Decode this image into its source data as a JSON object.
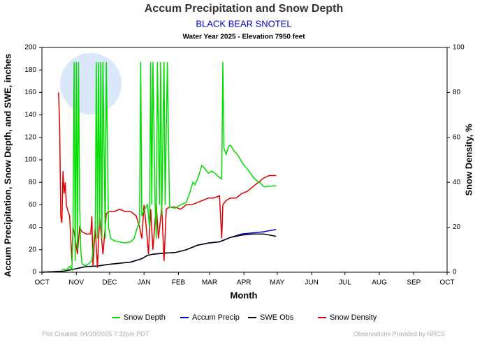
{
  "chart_data": {
    "type": "line",
    "title": "Accum Precipitation and Snow Depth",
    "subtitle": "BLACK BEAR SNOTEL",
    "info": "Water Year 2025 -  Elevation 7950 feet",
    "ylabel": "Accum Precipitation, Snow Depth, and SWE, inches",
    "y2label": "Snow Density, %",
    "xlabel": "Month",
    "footer_left": "Plot Created: 04/30/2025 7:32pm PDT",
    "footer_right": "Observations Provided by NRCS",
    "xlim": [
      0,
      365
    ],
    "xticks": [
      {
        "value": 0,
        "label": "OCT"
      },
      {
        "value": 31,
        "label": "NOV"
      },
      {
        "value": 61,
        "label": "DEC"
      },
      {
        "value": 92,
        "label": "JAN"
      },
      {
        "value": 123,
        "label": "FEB"
      },
      {
        "value": 151,
        "label": "MAR"
      },
      {
        "value": 182,
        "label": "APR"
      },
      {
        "value": 212,
        "label": "MAY"
      },
      {
        "value": 243,
        "label": "JUN"
      },
      {
        "value": 273,
        "label": "JUL"
      },
      {
        "value": 304,
        "label": "AUG"
      },
      {
        "value": 335,
        "label": "SEP"
      },
      {
        "value": 365,
        "label": "OCT"
      }
    ],
    "ylim": [
      0,
      200
    ],
    "yticks": [
      0,
      20,
      40,
      60,
      80,
      100,
      120,
      140,
      160,
      180,
      200
    ],
    "y2lim": [
      0,
      100
    ],
    "y2ticks": [
      0,
      20,
      40,
      60,
      80,
      100
    ],
    "legend": "bottom",
    "series": [
      {
        "name": "Snow Depth",
        "color": "#00dd00",
        "x": [
          18,
          22,
          25,
          27,
          28,
          29,
          30,
          31,
          32,
          33,
          34,
          35,
          36,
          38,
          40,
          45,
          48,
          49,
          50,
          51,
          52,
          53,
          54,
          55,
          57,
          58,
          60,
          62,
          65,
          70,
          75,
          80,
          83,
          86,
          88,
          89,
          90,
          92,
          95,
          97,
          98,
          99,
          100,
          102,
          103,
          104,
          106,
          107,
          108,
          110,
          111,
          113,
          115,
          120,
          125,
          130,
          133,
          136,
          138,
          141,
          144,
          147,
          150,
          153,
          156,
          159,
          162,
          163,
          164,
          166,
          168,
          170,
          173,
          176,
          179,
          182,
          185,
          188,
          190,
          193,
          196,
          198,
          200,
          211
        ],
        "values": [
          3,
          2,
          5,
          2,
          40,
          187,
          10,
          187,
          20,
          187,
          60,
          20,
          8,
          6,
          6,
          10,
          40,
          187,
          30,
          187,
          40,
          187,
          30,
          187,
          30,
          187,
          40,
          30,
          28,
          27,
          26,
          27,
          30,
          40,
          45,
          187,
          50,
          55,
          60,
          40,
          187,
          60,
          187,
          60,
          30,
          187,
          60,
          187,
          50,
          187,
          60,
          187,
          58,
          57,
          60,
          62,
          70,
          80,
          78,
          85,
          95,
          92,
          88,
          90,
          88,
          85,
          83,
          187,
          110,
          105,
          112,
          113,
          108,
          105,
          100,
          95,
          92,
          88,
          85,
          82,
          80,
          78,
          76,
          77
        ]
      },
      {
        "name": "Accum Precip",
        "color": "#0000cc",
        "x": [
          0,
          20,
          30,
          40,
          50,
          60,
          70,
          80,
          90,
          95,
          100,
          110,
          120,
          130,
          140,
          150,
          160,
          170,
          180,
          190,
          200,
          211
        ],
        "values": [
          0,
          1,
          3,
          5,
          5.5,
          7,
          8,
          9,
          12,
          15,
          16,
          17,
          17.5,
          20,
          24,
          26,
          27,
          31,
          34,
          35,
          36,
          38
        ]
      },
      {
        "name": "SWE Obs",
        "color": "#000000",
        "x": [
          0,
          20,
          30,
          40,
          50,
          60,
          70,
          80,
          90,
          95,
          100,
          110,
          120,
          130,
          140,
          150,
          160,
          170,
          180,
          190,
          200,
          211
        ],
        "values": [
          0,
          1,
          3,
          5,
          5.5,
          7,
          8,
          9,
          12,
          15,
          16,
          17,
          17.5,
          20,
          24,
          26,
          27,
          31,
          33,
          34,
          34,
          32
        ]
      },
      {
        "name": "Snow Density",
        "color": "#dd0000",
        "axis": "y2",
        "x": [
          15,
          16,
          17,
          18,
          19,
          20,
          21,
          22,
          23,
          25,
          27,
          28,
          30,
          32,
          34,
          36,
          40,
          44,
          45,
          46,
          48,
          50,
          52,
          55,
          58,
          60,
          65,
          70,
          75,
          80,
          85,
          88,
          90,
          92,
          94,
          96,
          98,
          100,
          103,
          105,
          108,
          110,
          112,
          115,
          120,
          125,
          130,
          135,
          140,
          145,
          150,
          155,
          160,
          162,
          163,
          166,
          170,
          175,
          180,
          185,
          190,
          195,
          200,
          205,
          211
        ],
        "values": [
          80,
          65,
          25,
          22,
          45,
          35,
          40,
          30,
          28,
          25,
          5,
          20,
          15,
          8,
          20,
          18,
          17,
          17,
          25,
          3,
          20,
          2,
          25,
          8,
          26,
          27,
          27,
          28,
          27,
          27,
          25,
          20,
          15,
          30,
          20,
          8,
          28,
          10,
          30,
          15,
          29,
          5,
          28,
          29,
          29,
          28,
          30,
          30,
          31,
          32,
          33,
          33,
          34,
          15,
          30,
          32,
          33,
          33,
          35,
          36,
          38,
          40,
          42,
          43,
          43
        ]
      }
    ]
  }
}
